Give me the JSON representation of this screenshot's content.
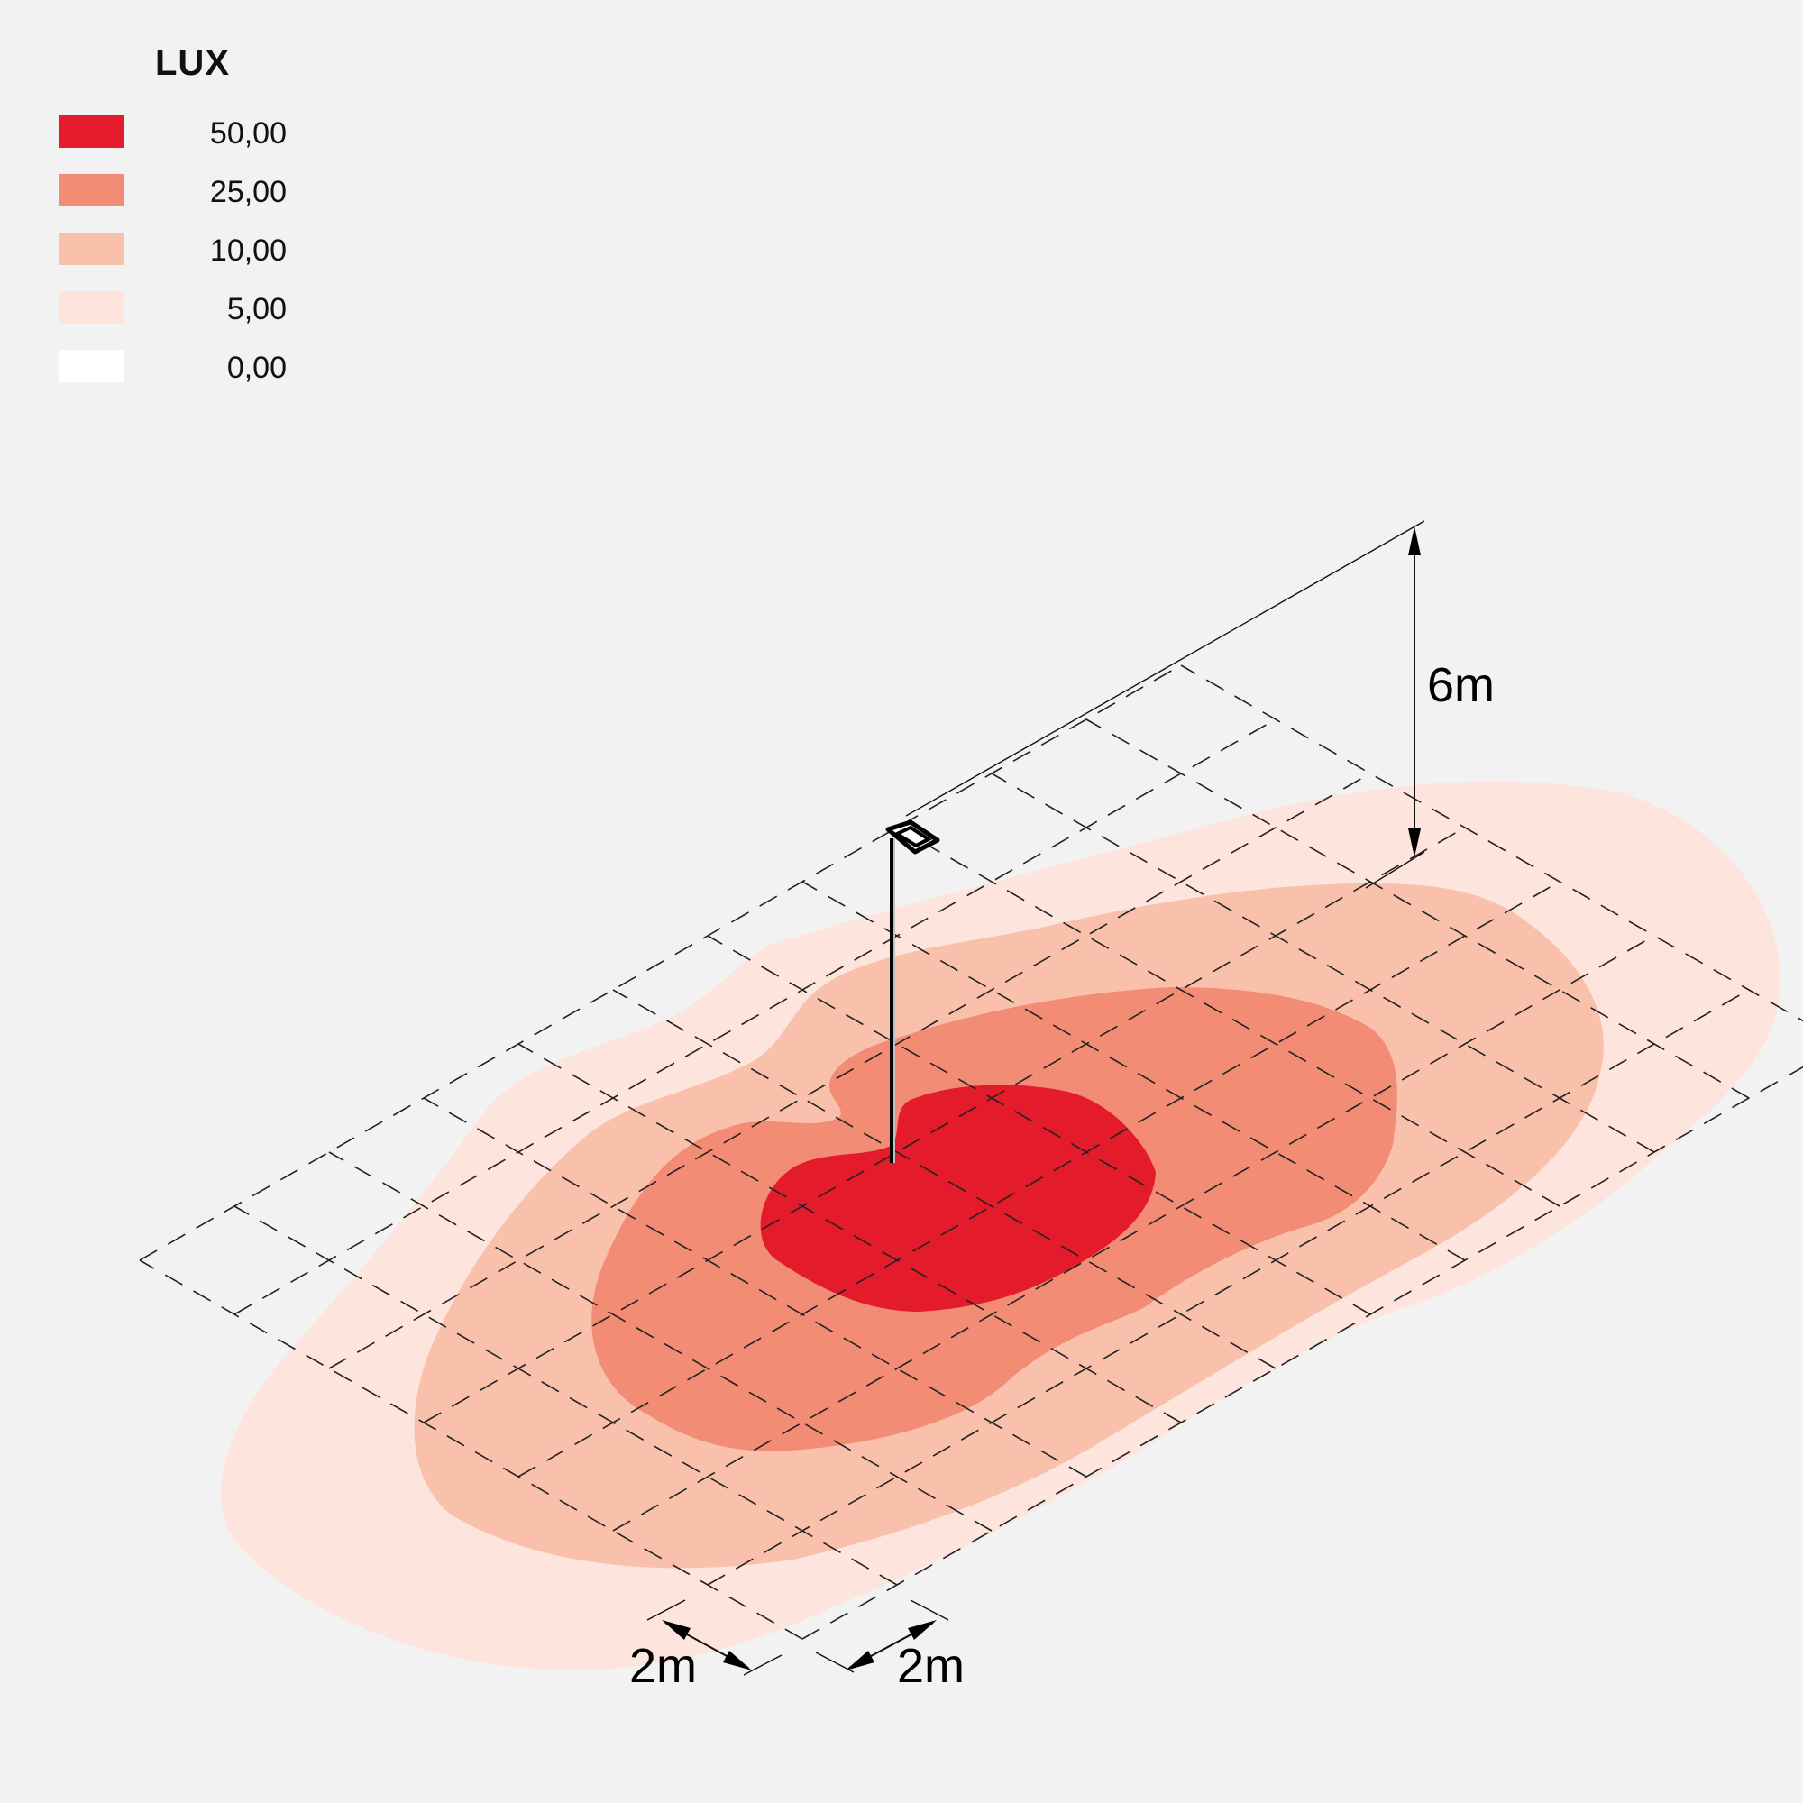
{
  "legend": {
    "title": "LUX",
    "items": [
      {
        "value": "50,00",
        "color": "#e41b2b"
      },
      {
        "value": "25,00",
        "color": "#f28c75"
      },
      {
        "value": "10,00",
        "color": "#f9c0ab"
      },
      {
        "value": "5,00",
        "color": "#fde4dc"
      },
      {
        "value": "0,00",
        "color": "#ffffff"
      }
    ]
  },
  "dimensions": {
    "height": "6m",
    "grid_left": "2m",
    "grid_right": "2m"
  }
}
